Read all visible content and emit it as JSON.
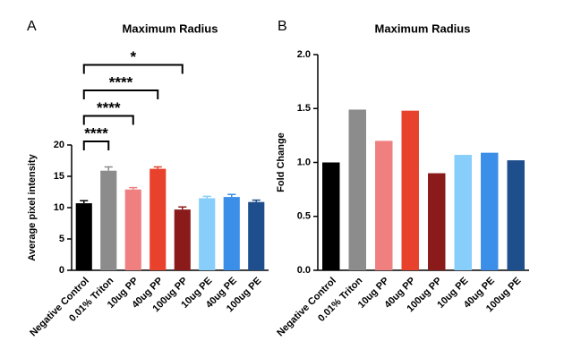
{
  "chart_data": [
    {
      "type": "bar",
      "panel": "A",
      "title": "Maximum Radius",
      "y_label": "Average pixel intensity",
      "categories": [
        "Negative Control",
        "0.01% Triton",
        "10ug PP",
        "40ug PP",
        "100ug PP",
        "10ug PE",
        "40ug PE",
        "100ug PE"
      ],
      "values": [
        10.7,
        15.9,
        12.9,
        16.2,
        9.7,
        11.5,
        11.7,
        10.9
      ],
      "errors": [
        0.4,
        0.6,
        0.3,
        0.3,
        0.4,
        0.3,
        0.4,
        0.3
      ],
      "colors": [
        "#000000",
        "#8c8c8c",
        "#f08080",
        "#e8412c",
        "#8b1a1a",
        "#87cefa",
        "#3b8fe8",
        "#1f4e8c"
      ],
      "ylim": [
        0,
        20
      ],
      "yticks": [
        0,
        5,
        10,
        15,
        20
      ],
      "comparisons": [
        {
          "label": "****",
          "pair": [
            "Negative Control",
            "0.01% Triton"
          ]
        },
        {
          "label": "****",
          "pair": [
            "Negative Control",
            "10ug PP"
          ]
        },
        {
          "label": "****",
          "pair": [
            "Negative Control",
            "40ug PP"
          ]
        },
        {
          "label": "*",
          "pair": [
            "Negative Control",
            "100ug PP"
          ]
        }
      ]
    },
    {
      "type": "bar",
      "panel": "B",
      "title": "Maximum Radius",
      "y_label": "Fold Change",
      "categories": [
        "Negative Control",
        "0.01% Triton",
        "10ug PP",
        "40ug PP",
        "100ug PP",
        "10ug PE",
        "40ug PE",
        "100ug PE"
      ],
      "values": [
        1.0,
        1.49,
        1.2,
        1.48,
        0.9,
        1.07,
        1.09,
        1.02
      ],
      "colors": [
        "#000000",
        "#8c8c8c",
        "#f08080",
        "#e8412c",
        "#8b1a1a",
        "#87cefa",
        "#3b8fe8",
        "#1f4e8c"
      ],
      "ylim": [
        0,
        2
      ],
      "yticks": [
        {
          "value": 0,
          "label": "0.0"
        },
        0.5,
        {
          "value": 1,
          "label": "1.0"
        },
        1.5,
        {
          "value": 2,
          "label": "2.0"
        }
      ]
    }
  ]
}
